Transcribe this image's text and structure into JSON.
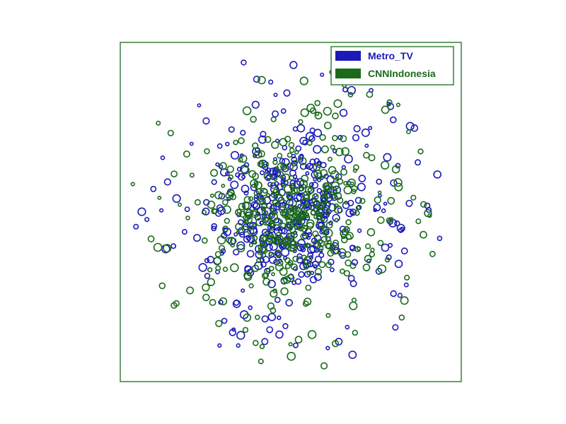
{
  "chart_data": {
    "type": "scatter",
    "title": "",
    "xlabel": "",
    "ylabel": "",
    "grid": false,
    "xlim": [
      0,
      100
    ],
    "ylim": [
      0,
      100
    ],
    "legend_position": "top-right",
    "marker": "hollow-circle",
    "series": [
      {
        "name": "Metro_TV",
        "color": "#1a1ab8",
        "count": 480,
        "seed": 11
      },
      {
        "name": "CNNIndonesia",
        "color": "#1b6b1b",
        "count": 440,
        "seed": 29
      }
    ],
    "distribution": {
      "center": [
        49.5,
        50.0
      ],
      "core_spread": 10,
      "halo_spread": 27,
      "core_fraction": 0.55
    },
    "point_radius_range": [
      2,
      5.5
    ]
  },
  "frame_color": "#1b6b1b"
}
